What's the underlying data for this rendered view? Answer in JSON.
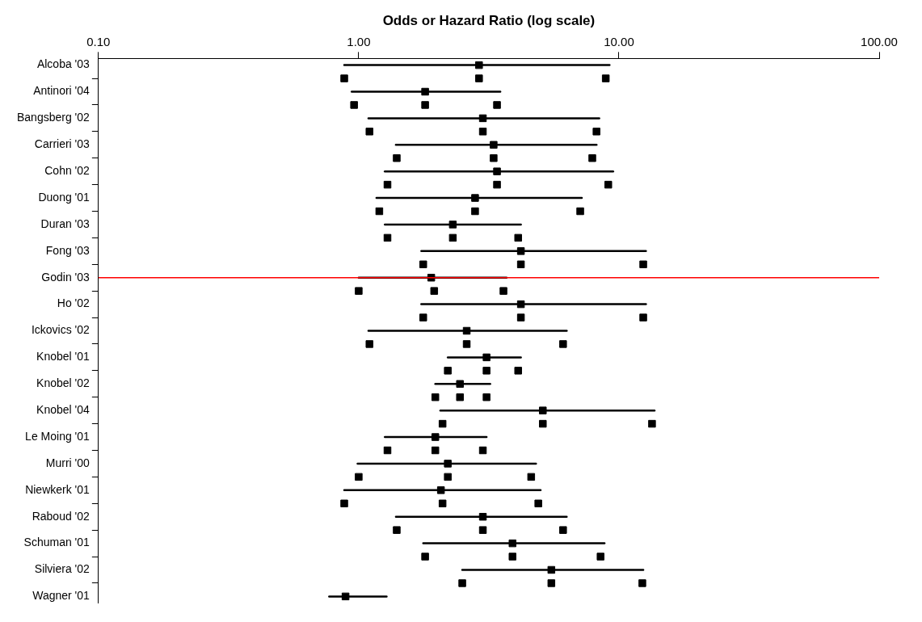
{
  "chart_data": {
    "type": "scatter",
    "orientation": "horizontal",
    "xlabel": "Odds or Hazard Ratio (log scale)",
    "log": "x",
    "xlim": [
      0.1,
      100
    ],
    "xticks": [
      {
        "value": 0.1,
        "label": "0.10"
      },
      {
        "value": 1,
        "label": "1.00"
      },
      {
        "value": 10,
        "label": "10.00"
      },
      {
        "value": 100,
        "label": "100.00"
      }
    ],
    "grid": false,
    "legend": false,
    "marker": "square",
    "categories": [
      "Alcoba '03",
      null,
      "Antinori '04",
      null,
      "Bangsberg '02",
      null,
      "Carrieri '03",
      null,
      "Cohn '02",
      null,
      "Duong '01",
      null,
      "Duran '03",
      null,
      "Fong '03",
      null,
      "Godin '03",
      null,
      "Ho '02",
      null,
      "Ickovics '02",
      null,
      "Knobel '01",
      null,
      "Knobel '02",
      null,
      "Knobel '04",
      null,
      "Le Moing '01",
      null,
      "Murri '00",
      null,
      "Niewkerk '01",
      null,
      "Raboud '02",
      null,
      "Schuman '01",
      null,
      "Silviera '02",
      null,
      "Wagner '01"
    ],
    "series": [
      {
        "color": "#000000",
        "values": [
          2.9,
          null,
          1.8,
          null,
          3.0,
          null,
          3.3,
          null,
          3.4,
          null,
          2.8,
          null,
          2.3,
          null,
          4.2,
          null,
          1.9,
          null,
          4.2,
          null,
          2.6,
          null,
          3.1,
          null,
          2.45,
          null,
          5.1,
          null,
          1.97,
          null,
          2.2,
          null,
          2.07,
          null,
          3.0,
          null,
          3.9,
          null,
          5.5,
          null,
          0.89
        ],
        "errors": [
          [
            0.88,
            9.2
          ],
          null,
          [
            0.94,
            3.5
          ],
          null,
          [
            1.09,
            8.4
          ],
          null,
          [
            1.39,
            8.2
          ],
          null,
          [
            1.26,
            9.5
          ],
          null,
          [
            1.17,
            7.2
          ],
          null,
          [
            1.26,
            4.2
          ],
          null,
          [
            1.74,
            12.7
          ],
          null,
          [
            1.0,
            3.7
          ],
          null,
          [
            1.74,
            12.7
          ],
          null,
          [
            1.09,
            6.3
          ],
          null,
          [
            2.2,
            4.2
          ],
          null,
          [
            1.97,
            3.2
          ],
          null,
          [
            2.06,
            13.7
          ],
          null,
          [
            1.26,
            3.1
          ],
          null,
          [
            0.99,
            4.8
          ],
          null,
          [
            0.88,
            5.0
          ],
          null,
          [
            1.39,
            6.3
          ],
          null,
          [
            1.77,
            8.8
          ],
          null,
          [
            2.5,
            12.4
          ],
          null,
          [
            0.77,
            1.28
          ]
        ]
      },
      {
        "color": "#000000",
        "values": [
          null,
          0.88,
          null,
          0.96,
          null,
          1.1,
          null,
          1.4,
          null,
          1.29,
          null,
          1.2,
          null,
          1.29,
          null,
          1.77,
          null,
          1.0,
          null,
          1.77,
          null,
          1.1,
          null,
          2.2,
          null,
          1.97,
          null,
          2.1,
          null,
          1.29,
          null,
          1.0,
          null,
          0.88,
          null,
          1.4,
          null,
          1.8,
          null,
          2.5,
          null
        ]
      },
      {
        "color": "#000000",
        "values": [
          null,
          2.9,
          null,
          1.8,
          null,
          3.0,
          null,
          3.3,
          null,
          3.4,
          null,
          2.8,
          null,
          2.3,
          null,
          4.2,
          null,
          1.95,
          null,
          4.2,
          null,
          2.6,
          null,
          3.1,
          null,
          2.45,
          null,
          5.1,
          null,
          1.97,
          null,
          2.2,
          null,
          2.1,
          null,
          3.0,
          null,
          3.9,
          null,
          5.5,
          null
        ]
      },
      {
        "color": "#000000",
        "values": [
          null,
          8.9,
          null,
          3.4,
          null,
          8.2,
          null,
          7.9,
          null,
          9.1,
          null,
          7.1,
          null,
          4.1,
          null,
          12.4,
          null,
          3.6,
          null,
          12.4,
          null,
          6.1,
          null,
          4.1,
          null,
          3.1,
          null,
          13.4,
          null,
          3.0,
          null,
          4.6,
          null,
          4.9,
          null,
          6.1,
          null,
          8.5,
          null,
          12.3,
          null
        ]
      }
    ],
    "ref_lines": [
      {
        "axis": "y",
        "value": "Godin '03",
        "color": "#ff0000"
      }
    ]
  }
}
